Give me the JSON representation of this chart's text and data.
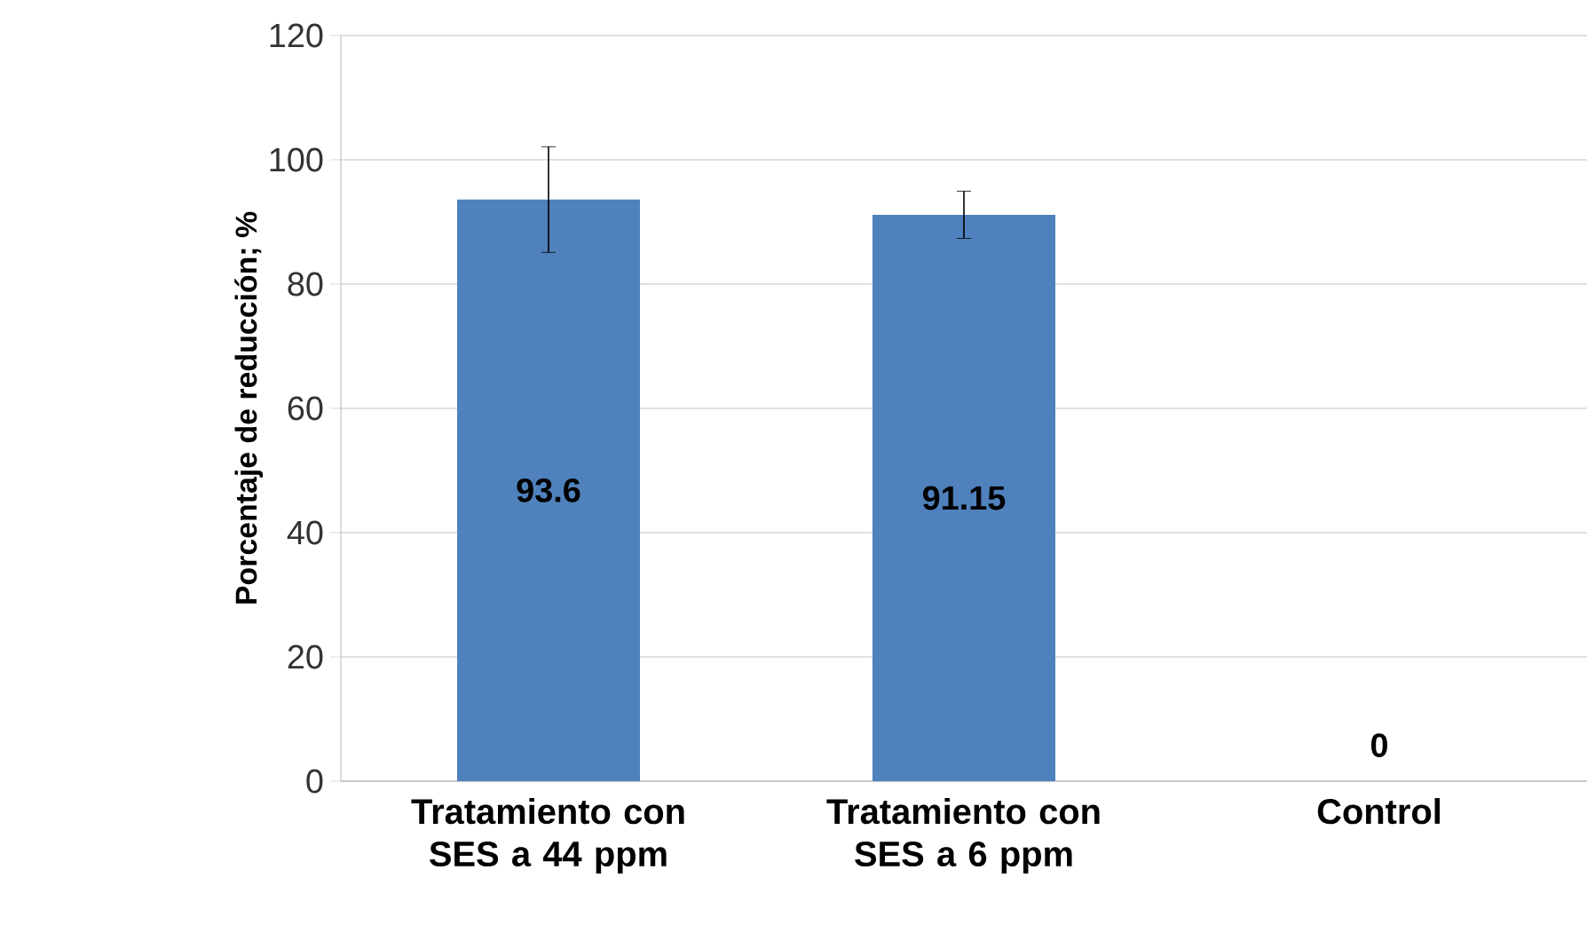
{
  "chart_data": {
    "type": "bar",
    "ylabel": "Porcentaje de reducción; %",
    "categories": [
      "Tratamiento con SES a 44 ppm",
      "Tratamiento con SES a 6 ppm",
      "Control"
    ],
    "values": [
      93.6,
      91.15,
      0
    ],
    "errors": [
      8.5,
      3.8,
      null
    ],
    "color": "#4f81bd",
    "ylim": [
      0,
      120
    ],
    "yticks": [
      0,
      20,
      40,
      60,
      80,
      100,
      120
    ],
    "grid": "y",
    "data_labels": true
  }
}
